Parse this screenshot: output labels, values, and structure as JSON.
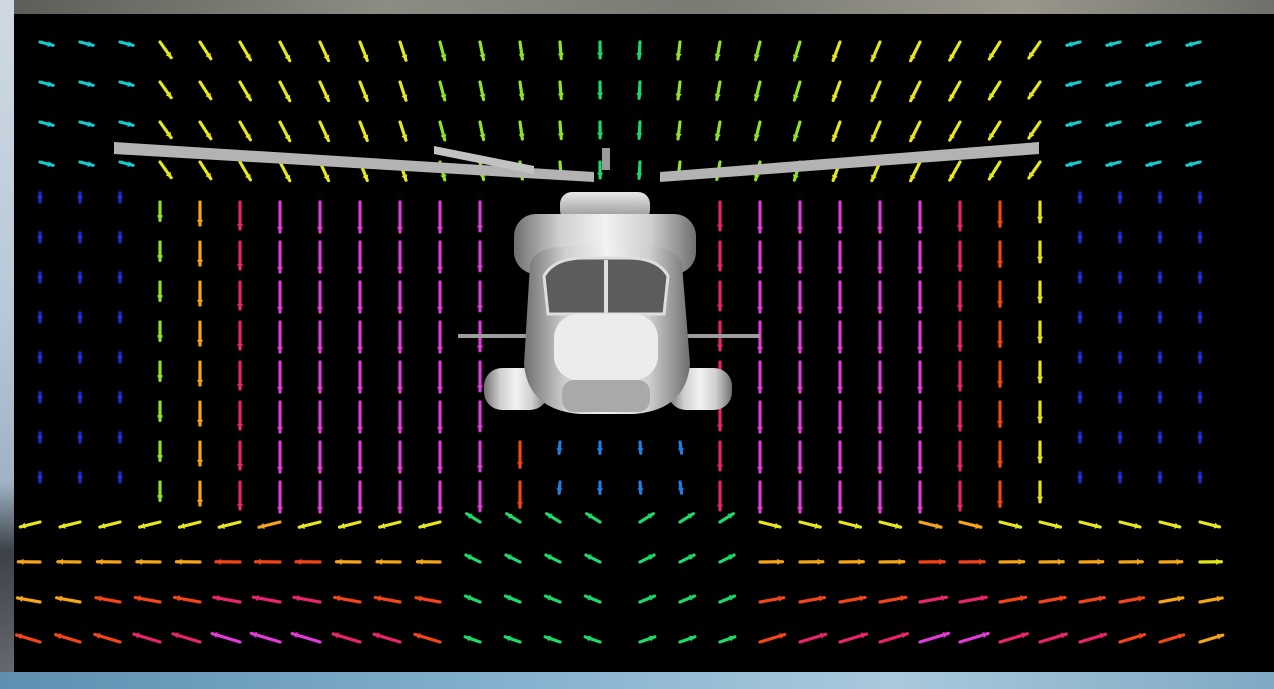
{
  "scene": {
    "description_type": "cfd-velocity-vector-field",
    "colors": {
      "background": "#000000",
      "rotor": "#b3b3b3",
      "fuselage": "#d9d9d9",
      "frame_top": "#7a7b74",
      "frame_left": "#b8c8d8",
      "frame_bottom": "#83b1cf"
    },
    "velocity_palette": [
      "#1a2fd6",
      "#1f7fe0",
      "#19c9d0",
      "#1fd96a",
      "#8fe22a",
      "#e6e61c",
      "#f5a51a",
      "#f2451a",
      "#e8246e",
      "#e23ad8"
    ]
  }
}
